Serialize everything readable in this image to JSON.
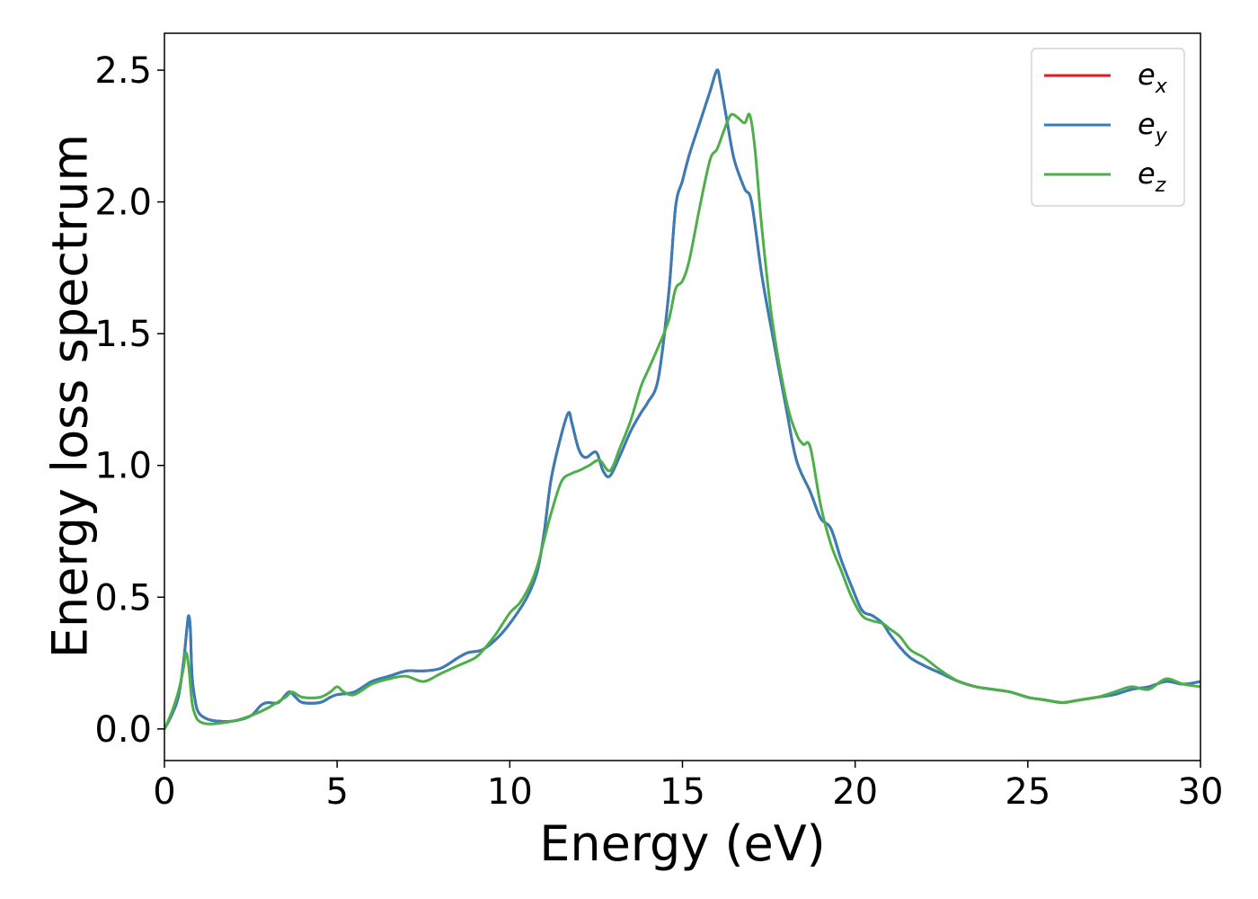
{
  "chart_data": {
    "type": "line",
    "title": "",
    "xlabel": "Energy (eV)",
    "ylabel": "Energy loss spectrum",
    "xlim": [
      0,
      30
    ],
    "ylim": [
      -0.12,
      2.64
    ],
    "xticks": [
      0,
      5,
      10,
      15,
      20,
      25,
      30
    ],
    "yticks": [
      0.0,
      0.5,
      1.0,
      1.5,
      2.0,
      2.5
    ],
    "xtick_labels": [
      "0",
      "5",
      "10",
      "15",
      "20",
      "25",
      "30"
    ],
    "ytick_labels": [
      "0.0",
      "0.5",
      "1.0",
      "1.5",
      "2.0",
      "2.5"
    ],
    "grid": false,
    "legend_position": "top-right",
    "series": [
      {
        "name": "e_x",
        "label_main": "e",
        "label_sub": "x",
        "color": "#e41a1c",
        "x": [
          0,
          0.2,
          0.4,
          0.55,
          0.65,
          0.7,
          0.75,
          0.8,
          0.9,
          1.0,
          1.2,
          1.5,
          2.0,
          2.5,
          2.8,
          3.0,
          3.3,
          3.6,
          3.8,
          4.0,
          4.5,
          4.8,
          5.0,
          5.5,
          6.0,
          6.5,
          7.0,
          7.5,
          8.0,
          8.5,
          8.8,
          9.2,
          9.6,
          10.0,
          10.5,
          10.8,
          11.0,
          11.2,
          11.5,
          11.7,
          11.8,
          12.0,
          12.2,
          12.5,
          12.7,
          12.9,
          13.2,
          13.5,
          13.8,
          14.0,
          14.3,
          14.6,
          14.8,
          15.0,
          15.2,
          15.5,
          15.8,
          16.0,
          16.1,
          16.3,
          16.5,
          16.8,
          17.0,
          17.3,
          17.6,
          18.0,
          18.3,
          18.7,
          19.0,
          19.3,
          19.6,
          19.9,
          20.2,
          20.5,
          20.8,
          21.0,
          21.3,
          21.6,
          22.0,
          22.5,
          23.0,
          23.5,
          24.0,
          24.5,
          25.0,
          25.5,
          26.0,
          26.5,
          27.0,
          27.5,
          28.0,
          28.5,
          29.0,
          29.5,
          30.0
        ],
        "values": [
          0.0,
          0.05,
          0.12,
          0.25,
          0.38,
          0.43,
          0.38,
          0.2,
          0.1,
          0.06,
          0.04,
          0.03,
          0.03,
          0.05,
          0.09,
          0.1,
          0.1,
          0.14,
          0.12,
          0.1,
          0.1,
          0.12,
          0.13,
          0.14,
          0.18,
          0.2,
          0.22,
          0.22,
          0.23,
          0.27,
          0.29,
          0.3,
          0.34,
          0.4,
          0.5,
          0.6,
          0.75,
          0.95,
          1.12,
          1.2,
          1.16,
          1.06,
          1.03,
          1.05,
          0.98,
          0.96,
          1.04,
          1.13,
          1.2,
          1.24,
          1.33,
          1.65,
          1.98,
          2.08,
          2.18,
          2.3,
          2.42,
          2.5,
          2.45,
          2.3,
          2.16,
          2.05,
          2.0,
          1.72,
          1.5,
          1.22,
          1.02,
          0.9,
          0.8,
          0.76,
          0.64,
          0.54,
          0.45,
          0.43,
          0.4,
          0.36,
          0.31,
          0.27,
          0.24,
          0.21,
          0.18,
          0.16,
          0.15,
          0.14,
          0.12,
          0.11,
          0.1,
          0.11,
          0.12,
          0.13,
          0.15,
          0.16,
          0.18,
          0.17,
          0.18
        ]
      },
      {
        "name": "e_y",
        "label_main": "e",
        "label_sub": "y",
        "color": "#377eb8",
        "x": [
          0,
          0.2,
          0.4,
          0.55,
          0.65,
          0.7,
          0.75,
          0.8,
          0.9,
          1.0,
          1.2,
          1.5,
          2.0,
          2.5,
          2.8,
          3.0,
          3.3,
          3.6,
          3.8,
          4.0,
          4.5,
          4.8,
          5.0,
          5.5,
          6.0,
          6.5,
          7.0,
          7.5,
          8.0,
          8.5,
          8.8,
          9.2,
          9.6,
          10.0,
          10.5,
          10.8,
          11.0,
          11.2,
          11.5,
          11.7,
          11.8,
          12.0,
          12.2,
          12.5,
          12.7,
          12.9,
          13.2,
          13.5,
          13.8,
          14.0,
          14.3,
          14.6,
          14.8,
          15.0,
          15.2,
          15.5,
          15.8,
          16.0,
          16.1,
          16.3,
          16.5,
          16.8,
          17.0,
          17.3,
          17.6,
          18.0,
          18.3,
          18.7,
          19.0,
          19.3,
          19.6,
          19.9,
          20.2,
          20.5,
          20.8,
          21.0,
          21.3,
          21.6,
          22.0,
          22.5,
          23.0,
          23.5,
          24.0,
          24.5,
          25.0,
          25.5,
          26.0,
          26.5,
          27.0,
          27.5,
          28.0,
          28.5,
          29.0,
          29.5,
          30.0
        ],
        "values": [
          0.0,
          0.05,
          0.12,
          0.25,
          0.38,
          0.43,
          0.38,
          0.2,
          0.1,
          0.06,
          0.04,
          0.03,
          0.03,
          0.05,
          0.09,
          0.1,
          0.1,
          0.14,
          0.12,
          0.1,
          0.1,
          0.12,
          0.13,
          0.14,
          0.18,
          0.2,
          0.22,
          0.22,
          0.23,
          0.27,
          0.29,
          0.3,
          0.34,
          0.4,
          0.5,
          0.6,
          0.75,
          0.95,
          1.12,
          1.2,
          1.16,
          1.06,
          1.03,
          1.05,
          0.98,
          0.96,
          1.04,
          1.13,
          1.2,
          1.24,
          1.33,
          1.65,
          1.98,
          2.08,
          2.18,
          2.3,
          2.42,
          2.5,
          2.45,
          2.3,
          2.16,
          2.05,
          2.0,
          1.72,
          1.5,
          1.22,
          1.02,
          0.9,
          0.8,
          0.76,
          0.64,
          0.54,
          0.45,
          0.43,
          0.4,
          0.36,
          0.31,
          0.27,
          0.24,
          0.21,
          0.18,
          0.16,
          0.15,
          0.14,
          0.12,
          0.11,
          0.1,
          0.11,
          0.12,
          0.13,
          0.15,
          0.16,
          0.18,
          0.17,
          0.18
        ]
      },
      {
        "name": "e_z",
        "label_main": "e",
        "label_sub": "z",
        "color": "#4daf4a",
        "x": [
          0,
          0.2,
          0.4,
          0.55,
          0.62,
          0.7,
          0.8,
          0.9,
          1.0,
          1.2,
          1.5,
          2.0,
          2.5,
          3.0,
          3.5,
          3.7,
          4.0,
          4.5,
          4.8,
          5.0,
          5.2,
          5.5,
          6.0,
          6.5,
          7.0,
          7.5,
          8.0,
          8.5,
          9.0,
          9.3,
          9.6,
          10.0,
          10.3,
          10.6,
          10.8,
          11.0,
          11.2,
          11.5,
          11.8,
          12.0,
          12.3,
          12.6,
          12.9,
          13.2,
          13.5,
          13.8,
          14.0,
          14.3,
          14.6,
          14.8,
          15.0,
          15.2,
          15.5,
          15.8,
          16.0,
          16.2,
          16.4,
          16.6,
          16.8,
          16.95,
          17.1,
          17.3,
          17.6,
          18.0,
          18.3,
          18.5,
          18.7,
          19.0,
          19.3,
          19.6,
          19.9,
          20.2,
          20.5,
          20.8,
          21.0,
          21.3,
          21.6,
          22.0,
          22.5,
          23.0,
          23.5,
          24.0,
          24.5,
          25.0,
          25.5,
          26.0,
          26.5,
          27.0,
          27.5,
          28.0,
          28.5,
          29.0,
          29.5,
          30.0
        ],
        "values": [
          0.0,
          0.06,
          0.14,
          0.23,
          0.29,
          0.24,
          0.1,
          0.05,
          0.03,
          0.02,
          0.02,
          0.03,
          0.05,
          0.08,
          0.12,
          0.14,
          0.12,
          0.12,
          0.14,
          0.16,
          0.14,
          0.13,
          0.17,
          0.19,
          0.2,
          0.18,
          0.21,
          0.24,
          0.27,
          0.31,
          0.36,
          0.44,
          0.48,
          0.55,
          0.62,
          0.72,
          0.82,
          0.94,
          0.97,
          0.98,
          1.0,
          1.02,
          0.98,
          1.07,
          1.17,
          1.3,
          1.36,
          1.45,
          1.55,
          1.67,
          1.7,
          1.78,
          1.98,
          2.16,
          2.2,
          2.27,
          2.33,
          2.32,
          2.3,
          2.33,
          2.2,
          1.9,
          1.55,
          1.25,
          1.12,
          1.08,
          1.07,
          0.85,
          0.7,
          0.6,
          0.5,
          0.43,
          0.41,
          0.4,
          0.38,
          0.35,
          0.3,
          0.27,
          0.22,
          0.18,
          0.16,
          0.15,
          0.14,
          0.12,
          0.11,
          0.1,
          0.11,
          0.12,
          0.14,
          0.16,
          0.15,
          0.19,
          0.17,
          0.16
        ]
      }
    ]
  }
}
